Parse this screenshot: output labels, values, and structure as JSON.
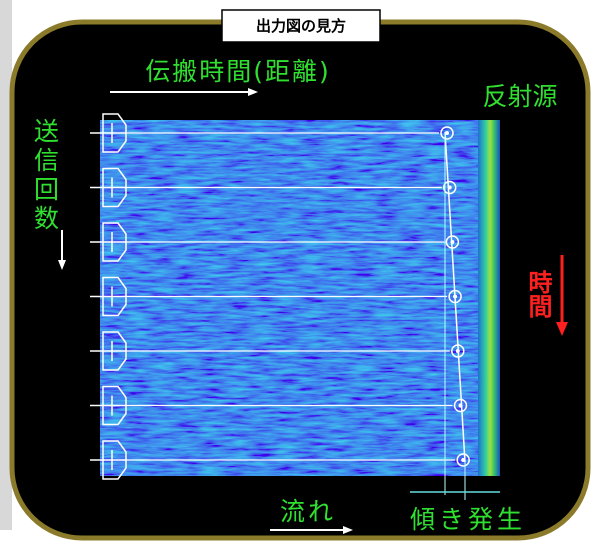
{
  "header": {
    "title": "出力図の見方"
  },
  "labels": {
    "propagation_time": "伝搬時間(距離)",
    "reflector": "反射源",
    "transmit_count": "送信回数",
    "time": "時間",
    "flow": "流れ",
    "tilt": "傾き発生"
  }
}
